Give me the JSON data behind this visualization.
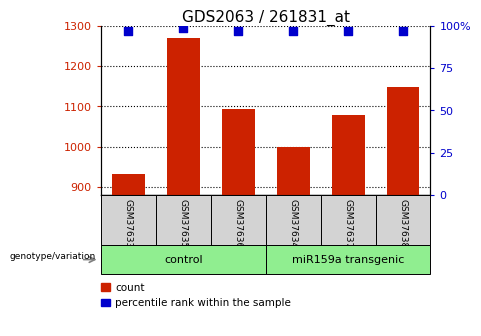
{
  "title": "GDS2063 / 261831_at",
  "samples": [
    "GSM37633",
    "GSM37635",
    "GSM37636",
    "GSM37634",
    "GSM37637",
    "GSM37638"
  ],
  "counts": [
    933,
    1270,
    1093,
    998,
    1078,
    1148
  ],
  "percentile_ranks": [
    97,
    99,
    97,
    97,
    97,
    97
  ],
  "ylim_left": [
    880,
    1300
  ],
  "ylim_right": [
    0,
    100
  ],
  "yticks_left": [
    900,
    1000,
    1100,
    1200,
    1300
  ],
  "yticks_right": [
    0,
    25,
    50,
    75,
    100
  ],
  "bar_color": "#cc2200",
  "dot_color": "#0000cc",
  "dot_size": 35,
  "grid_color": "black",
  "left_label_color": "#cc2200",
  "right_label_color": "#0000cc",
  "group1_label": "control",
  "group2_label": "miR159a transgenic",
  "group_box_color": "#90ee90",
  "sample_box_color": "#d3d3d3",
  "bottom_label": "genotype/variation",
  "legend_count_label": "count",
  "legend_percentile_label": "percentile rank within the sample",
  "title_fontsize": 11,
  "tick_fontsize": 8,
  "bar_width": 0.6
}
